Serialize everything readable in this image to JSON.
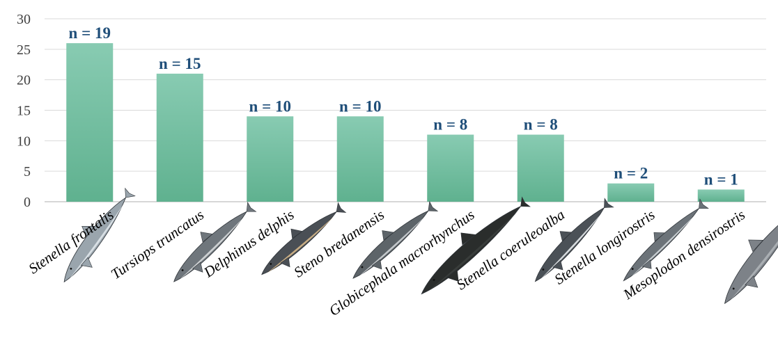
{
  "chart_data": {
    "type": "bar",
    "title": "",
    "xlabel": "",
    "ylabel": "",
    "ylim": [
      0,
      30
    ],
    "yticks": [
      0,
      5,
      10,
      15,
      20,
      25,
      30
    ],
    "grid": true,
    "legend": "none",
    "bar_color": "#6fbf9f",
    "label_color": "#1f4e79",
    "categories": [
      "Stenella frontalis",
      "Tursiops truncatus",
      "Delphinus delphis",
      "Steno bredanensis",
      "Globicephala macrorhynchus",
      "Stenella coeruleoalba",
      "Stenella longirostris",
      "Mesoplodon densirostris"
    ],
    "values": [
      26,
      21,
      14,
      14,
      11,
      11,
      3,
      2
    ],
    "data_labels": [
      "n = 19",
      "n = 15",
      "n = 10",
      "n = 10",
      "n = 8",
      "n = 8",
      "n = 2",
      "n = 1"
    ],
    "icons": [
      "atlantic-spotted-dolphin-icon",
      "bottlenose-dolphin-icon",
      "common-dolphin-icon",
      "rough-toothed-dolphin-icon",
      "pilot-whale-icon",
      "striped-dolphin-icon",
      "spinner-dolphin-icon",
      "beaked-whale-icon"
    ]
  }
}
